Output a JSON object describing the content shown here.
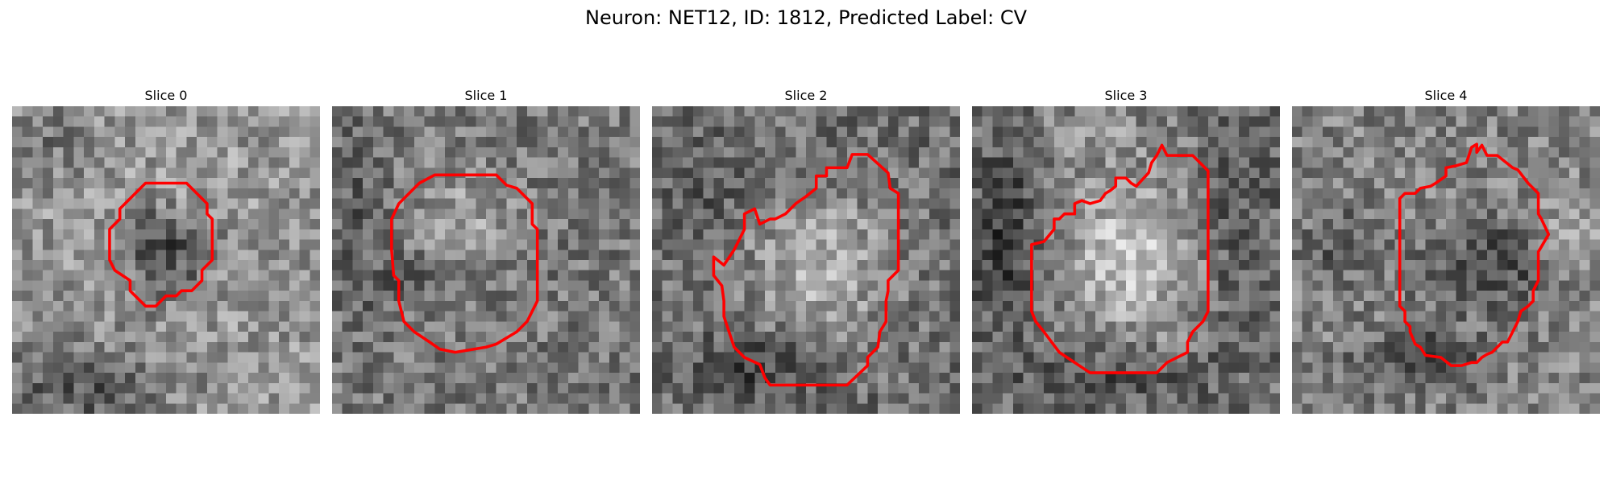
{
  "figure": {
    "title": "Neuron: NET12, ID: 1812, Predicted Label: CV",
    "contour_color": "#ff0000",
    "colormap": "grayscale"
  },
  "slices": [
    {
      "label": "Slice 0"
    },
    {
      "label": "Slice 1"
    },
    {
      "label": "Slice 2"
    },
    {
      "label": "Slice 3"
    },
    {
      "label": "Slice 4"
    }
  ]
}
